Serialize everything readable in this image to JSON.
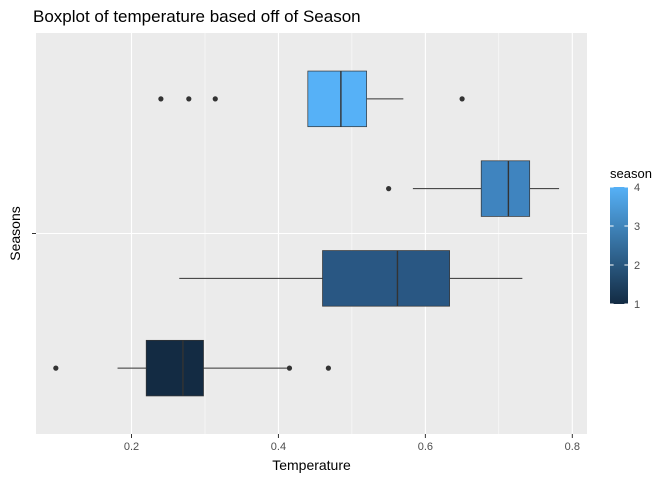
{
  "chart_data": {
    "type": "boxplot",
    "orientation": "horizontal",
    "title": "Boxplot of temperature based off of Season",
    "xlabel": "Temperature",
    "ylabel": "Seasons",
    "xlim": [
      0.07,
      0.82
    ],
    "x_ticks": [
      "0.2",
      "0.4",
      "0.6",
      "0.8"
    ],
    "x_tick_values": [
      0.2,
      0.4,
      0.6,
      0.8
    ],
    "grid": true,
    "legend": {
      "title": "season",
      "position": "right",
      "type": "colorbar",
      "labels": [
        "1",
        "2",
        "3",
        "4"
      ],
      "low_color": "#132B43",
      "high_color": "#56B1F7"
    },
    "boxes": [
      {
        "season": 4,
        "whisker_low": 0.44,
        "q1": 0.44,
        "median": 0.485,
        "q3": 0.52,
        "whisker_high": 0.57,
        "outliers": [
          0.24,
          0.278,
          0.314,
          0.65
        ],
        "color": "#56B1F7"
      },
      {
        "season": 3,
        "whisker_low": 0.583,
        "q1": 0.676,
        "median": 0.713,
        "q3": 0.742,
        "whisker_high": 0.782,
        "outliers": [
          0.55
        ],
        "color": "#3F84BF"
      },
      {
        "season": 2,
        "whisker_low": 0.265,
        "q1": 0.46,
        "median": 0.562,
        "q3": 0.633,
        "whisker_high": 0.732,
        "outliers": [],
        "color": "#295783"
      },
      {
        "season": 1,
        "whisker_low": 0.181,
        "q1": 0.22,
        "median": 0.27,
        "q3": 0.298,
        "whisker_high": 0.412,
        "outliers": [
          0.097,
          0.415,
          0.468
        ],
        "color": "#132B43"
      }
    ]
  }
}
